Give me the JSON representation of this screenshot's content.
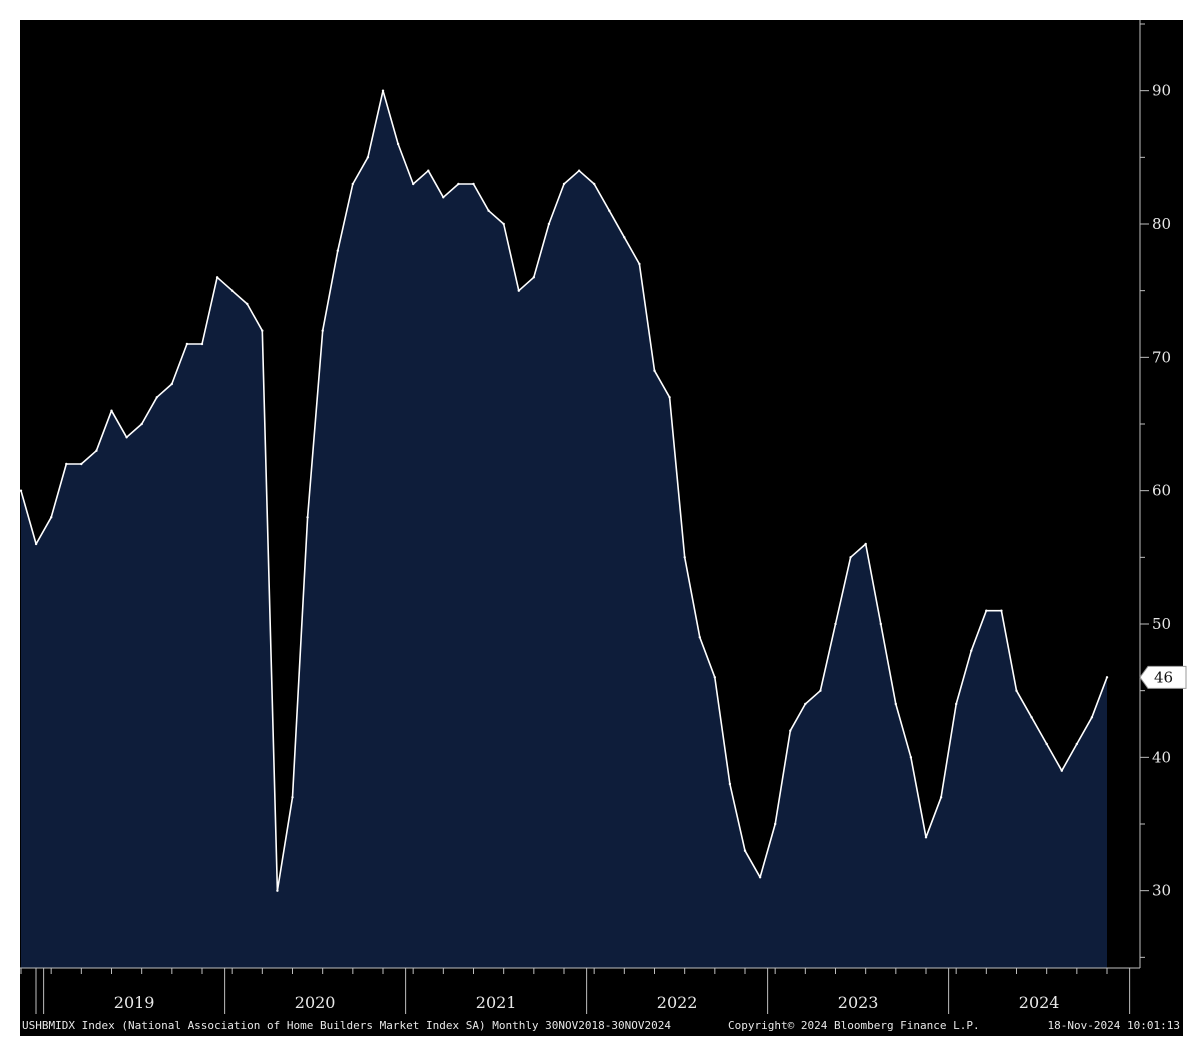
{
  "chart_data": {
    "type": "area",
    "title": "",
    "xlabel": "",
    "ylabel": "",
    "x_start": "2018-11",
    "x_end": "2024-11",
    "values": [
      60,
      56,
      58,
      62,
      62,
      63,
      66,
      64,
      65,
      67,
      68,
      71,
      71,
      76,
      75,
      74,
      72,
      30,
      37,
      58,
      72,
      78,
      83,
      85,
      90,
      86,
      83,
      84,
      82,
      83,
      83,
      81,
      80,
      75,
      76,
      80,
      83,
      84,
      83,
      81,
      79,
      77,
      69,
      67,
      55,
      49,
      46,
      38,
      33,
      31,
      35,
      42,
      44,
      45,
      50,
      55,
      56,
      50,
      44,
      40,
      34,
      37,
      44,
      48,
      51,
      51,
      45,
      43,
      41,
      39,
      41,
      43,
      46
    ],
    "ylim": [
      24.2,
      95.3
    ],
    "y_ticks": [
      30,
      40,
      50,
      60,
      70,
      80,
      90
    ],
    "x_year_labels": [
      "2019",
      "2020",
      "2021",
      "2022",
      "2023",
      "2024"
    ],
    "last_value_label": "46",
    "grid": false,
    "colors": {
      "background": "#000000",
      "fill": "#0e1d3a",
      "line": "#ffffff",
      "axis": "#bfbfbf",
      "text": "#e8e8e8"
    }
  },
  "footer": {
    "left": "USHBMIDX Index (National Association of Home Builders Market Index SA)  Monthly 30NOV2018-30NOV2024",
    "center": "Copyright© 2024 Bloomberg Finance L.P.",
    "right": "18-Nov-2024 10:01:13"
  }
}
